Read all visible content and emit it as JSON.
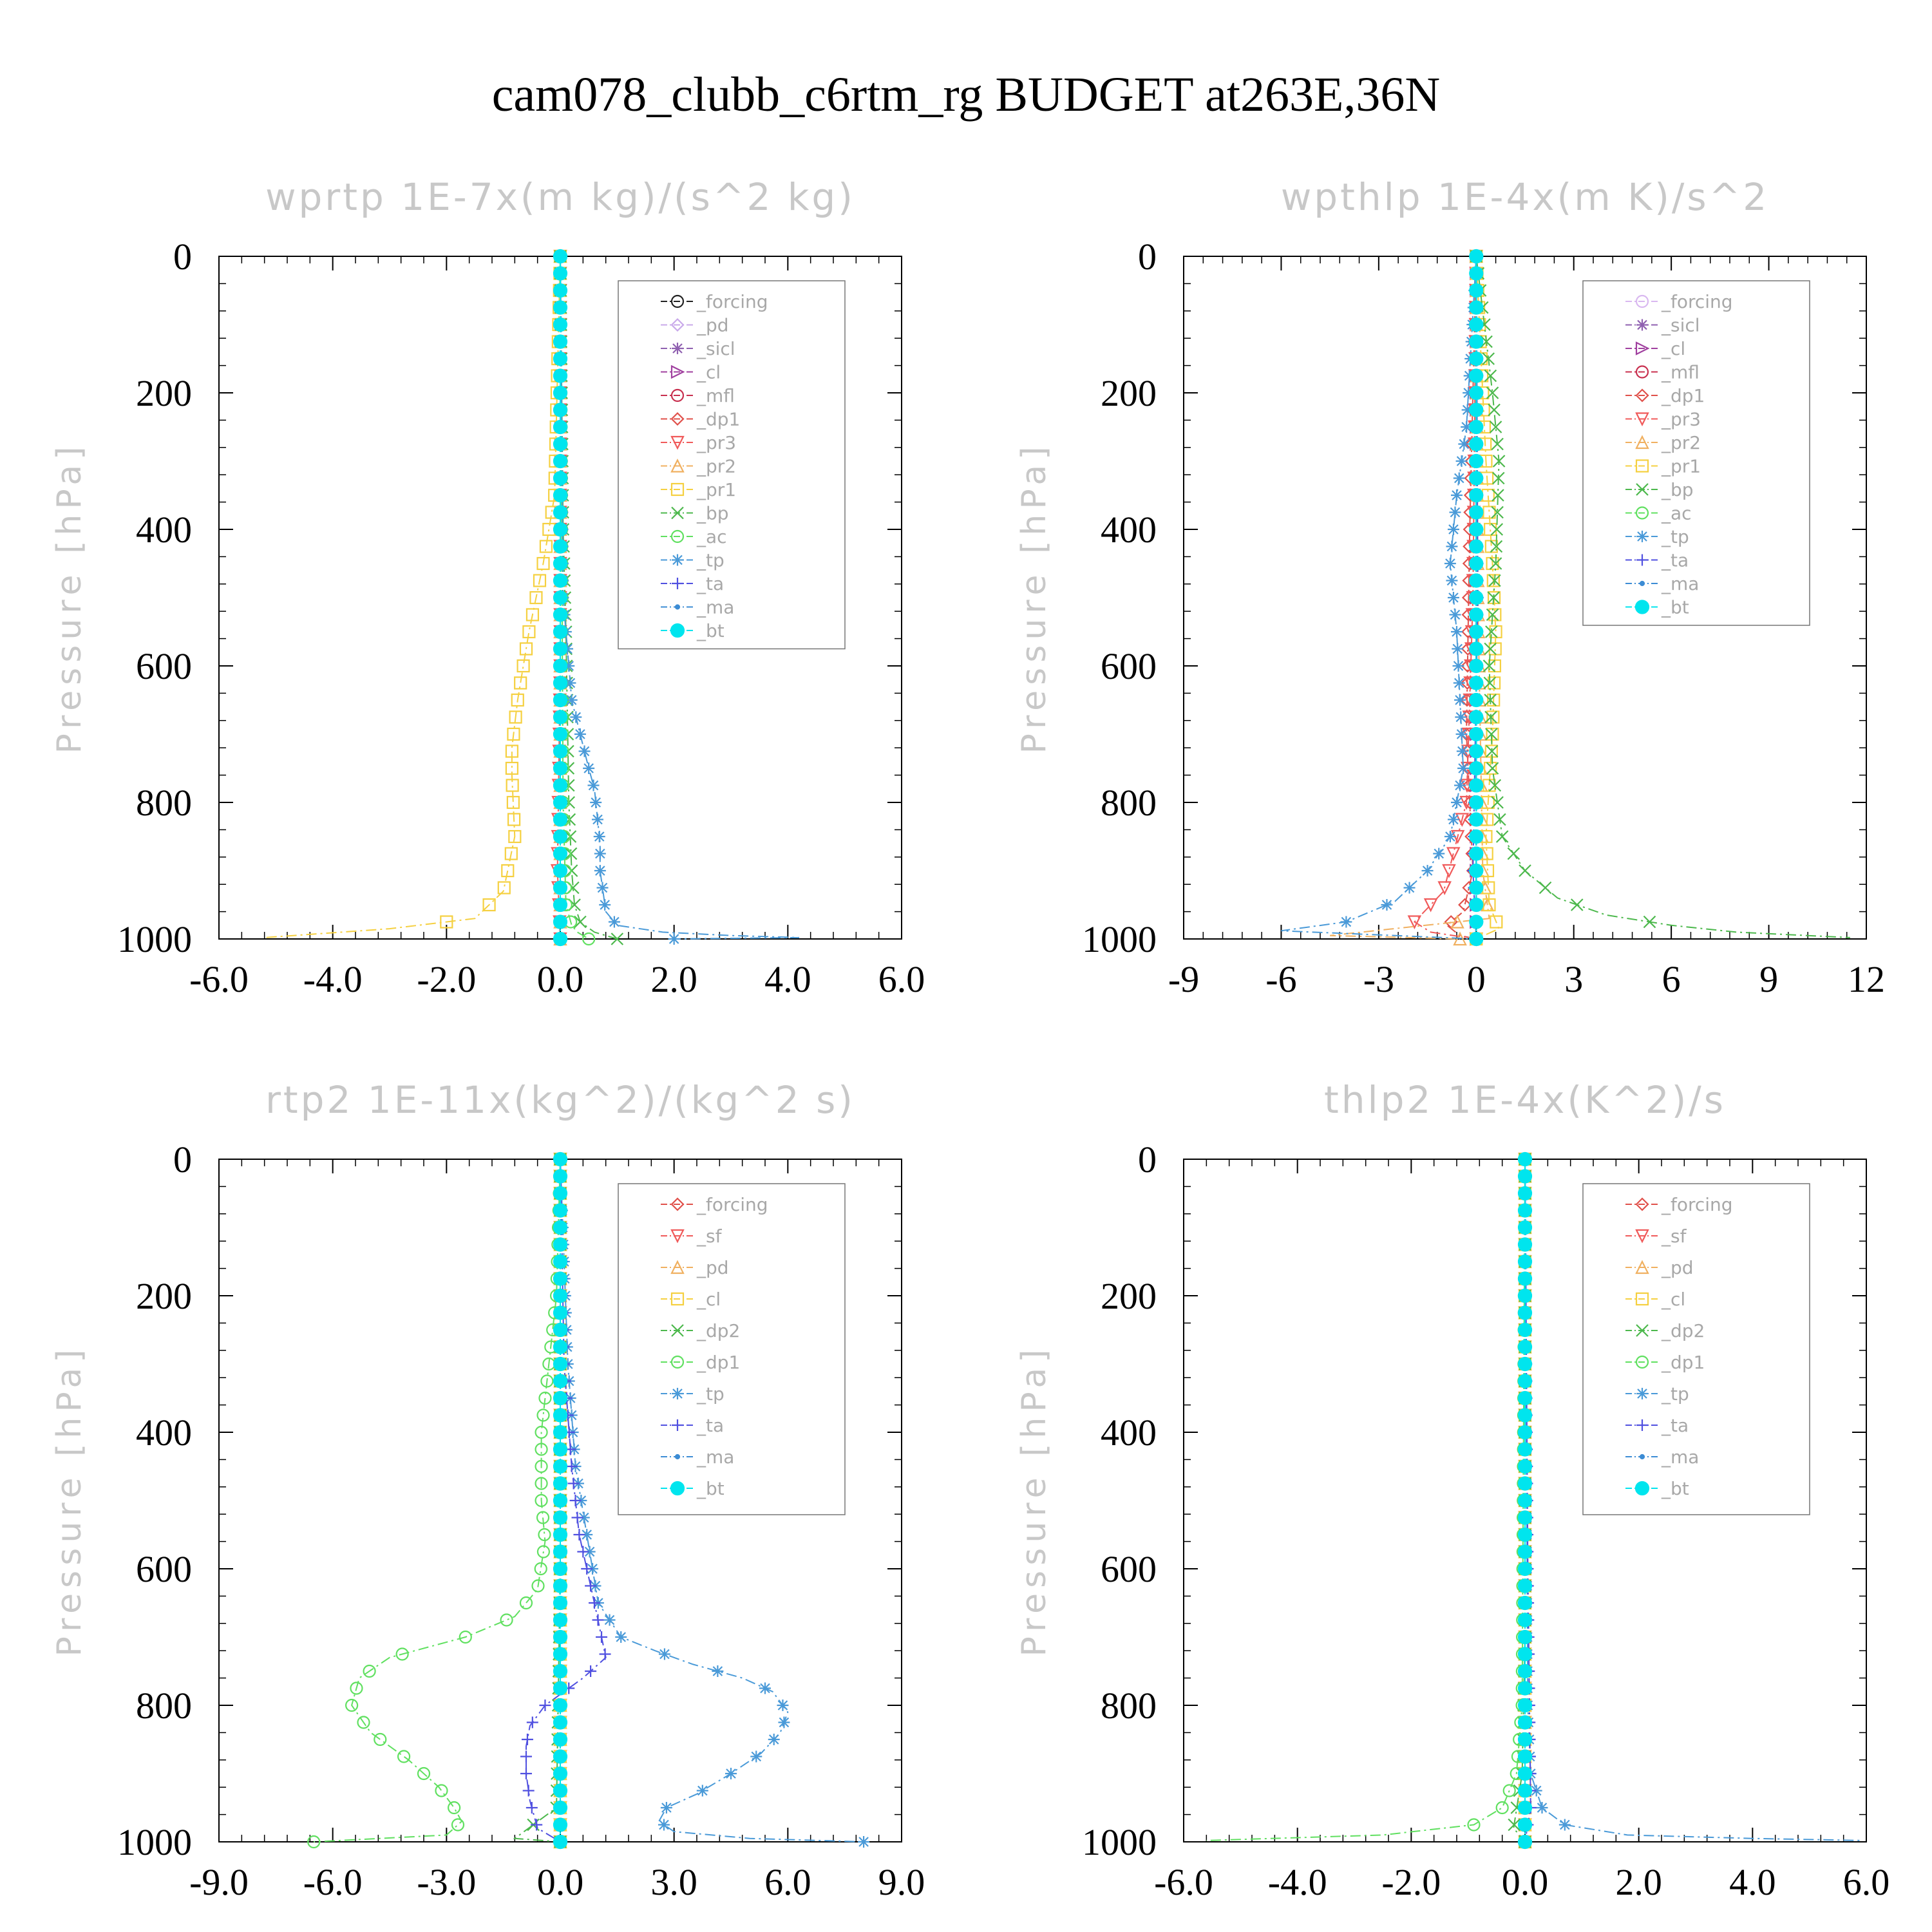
{
  "title": "cam078_clubb_c6rtm_rg  BUDGET at263E,36N",
  "chart_data": [
    {
      "type": "line",
      "title": "wprtp  1E-7x(m kg)/(s^2 kg)",
      "ylabel": "Pressure [hPa]",
      "xlim": [
        -6,
        6
      ],
      "ylim": [
        0,
        1000
      ],
      "y_inverted": true,
      "xticks": [
        "-6.0",
        "-4.0",
        "-2.0",
        "0.0",
        "2.0",
        "4.0",
        "6.0"
      ],
      "yticks": [
        "0",
        "200",
        "400",
        "600",
        "800",
        "1000"
      ],
      "legend_position": "top-right",
      "series": [
        {
          "name": "_forcing",
          "color": "#222222",
          "marker": "circle-dot",
          "x": [
            0
          ],
          "y": [
            0
          ]
        },
        {
          "name": "_pd",
          "color": "#c9a9ea",
          "marker": "diamond",
          "x": [
            0
          ],
          "y": [
            0
          ]
        },
        {
          "name": "_sicl",
          "color": "#8f60b0",
          "marker": "star",
          "x": [
            0
          ],
          "y": [
            0
          ]
        },
        {
          "name": "_cl",
          "color": "#a0409f",
          "marker": "triangle-right",
          "x": [
            0
          ],
          "y": [
            0
          ]
        },
        {
          "name": "_mfl",
          "color": "#c8304f",
          "marker": "circle-cross",
          "x": [
            0
          ],
          "y": [
            0
          ]
        },
        {
          "name": "_dp1",
          "color": "#e0504a",
          "marker": "diamond",
          "x": [
            0
          ],
          "y": [
            0
          ]
        },
        {
          "name": "_pr3",
          "color": "#f05a5a",
          "marker": "triangle-down",
          "x": [
            0,
            0,
            0,
            -0.05,
            0
          ],
          "y": [
            0,
            400,
            600,
            900,
            1000
          ]
        },
        {
          "name": "_pr2",
          "color": "#f0b060",
          "marker": "triangle-up",
          "x": [
            0,
            0,
            0
          ],
          "y": [
            0,
            600,
            1000
          ]
        },
        {
          "name": "_pr1",
          "color": "#f5d040",
          "marker": "square",
          "x": [
            0,
            -0.1,
            -0.3,
            -0.55,
            -0.75,
            -0.85,
            -0.85,
            -0.8,
            -1.0,
            -1.5,
            -3.0,
            -5.2
          ],
          "y": [
            0,
            350,
            450,
            550,
            650,
            720,
            760,
            850,
            930,
            970,
            985,
            998
          ]
        },
        {
          "name": "_bp",
          "color": "#4cb84c",
          "marker": "x",
          "x": [
            0,
            0.05,
            0.1,
            0.12,
            0.15,
            0.2,
            0.25,
            0.35,
            0.6,
            1.0
          ],
          "y": [
            0,
            400,
            550,
            650,
            800,
            900,
            950,
            975,
            990,
            1000
          ]
        },
        {
          "name": "_ac",
          "color": "#60e060",
          "marker": "circle",
          "x": [
            0,
            0.05,
            0.1,
            0.2,
            0.3,
            0.5
          ],
          "y": [
            0,
            800,
            950,
            980,
            990,
            1000
          ]
        },
        {
          "name": "_tp",
          "color": "#4a9ad8",
          "marker": "asterisk",
          "x": [
            0,
            0.05,
            0.2,
            0.35,
            0.5,
            0.6,
            0.65,
            0.7,
            0.7,
            0.75,
            0.8,
            1.0,
            1.8,
            3.0,
            4.2,
            2.0
          ],
          "y": [
            0,
            500,
            650,
            700,
            750,
            780,
            820,
            860,
            900,
            930,
            960,
            980,
            990,
            995,
            998,
            1000
          ]
        },
        {
          "name": "_ta",
          "color": "#5050e0",
          "marker": "plus",
          "x": [
            0,
            0,
            0
          ],
          "y": [
            0,
            500,
            1000
          ]
        },
        {
          "name": "_ma",
          "color": "#3c8cd4",
          "marker": "dot",
          "x": [
            0,
            0
          ],
          "y": [
            0,
            1000
          ]
        },
        {
          "name": "_bt",
          "color": "#00e5ee",
          "marker": "filled-circle",
          "x": [
            0,
            0
          ],
          "y": [
            0,
            1000
          ]
        }
      ]
    },
    {
      "type": "line",
      "title": "wpthlp  1E-4x(m K)/s^2",
      "ylabel": "Pressure [hPa]",
      "xlim": [
        -9,
        12
      ],
      "ylim": [
        0,
        1000
      ],
      "y_inverted": true,
      "xticks": [
        "-9",
        "-6",
        "-3",
        "0",
        "3",
        "6",
        "9",
        "12"
      ],
      "yticks": [
        "0",
        "200",
        "400",
        "600",
        "800",
        "1000"
      ],
      "legend_position": "top-right",
      "series": [
        {
          "name": "_forcing",
          "color": "#d9b8f0",
          "marker": "circle-dot",
          "x": [
            0,
            0
          ],
          "y": [
            0,
            1000
          ]
        },
        {
          "name": "_sicl",
          "color": "#8f60b0",
          "marker": "star",
          "x": [
            0,
            0
          ],
          "y": [
            0,
            1000
          ]
        },
        {
          "name": "_cl",
          "color": "#a0409f",
          "marker": "triangle-right",
          "x": [
            0,
            0
          ],
          "y": [
            0,
            1000
          ]
        },
        {
          "name": "_mfl",
          "color": "#c8304f",
          "marker": "circle-cross",
          "x": [
            0,
            0
          ],
          "y": [
            0,
            1000
          ]
        },
        {
          "name": "_dp1",
          "color": "#e0504a",
          "marker": "diamond",
          "x": [
            0,
            -0.1,
            -0.2,
            -0.3,
            -0.1,
            -0.4,
            -0.9,
            -0.5,
            0
          ],
          "y": [
            0,
            200,
            400,
            700,
            900,
            960,
            980,
            995,
            1000
          ]
        },
        {
          "name": "_pr3",
          "color": "#f05a5a",
          "marker": "triangle-down",
          "x": [
            0,
            -0.1,
            -0.3,
            -1.0,
            -1.9,
            -1.4,
            0
          ],
          "y": [
            0,
            500,
            800,
            930,
            975,
            990,
            1000
          ]
        },
        {
          "name": "_pr2",
          "color": "#f0b060",
          "marker": "triangle-up",
          "x": [
            0,
            0.05,
            0.2,
            0.4,
            -4.5,
            -0.5
          ],
          "y": [
            0,
            500,
            900,
            970,
            995,
            1000
          ]
        },
        {
          "name": "_pr1",
          "color": "#f5d040",
          "marker": "square",
          "x": [
            0,
            0.3,
            0.5,
            0.6,
            0.5,
            0.3,
            0.4,
            0.7,
            0
          ],
          "y": [
            0,
            300,
            450,
            550,
            700,
            850,
            950,
            985,
            1000
          ]
        },
        {
          "name": "_bp",
          "color": "#4cb84c",
          "marker": "x",
          "x": [
            0,
            0.5,
            0.7,
            0.6,
            0.4,
            0.5,
            0.8,
            1.5,
            2.5,
            4.0,
            6.0,
            8.0,
            11.5
          ],
          "y": [
            0,
            200,
            300,
            450,
            600,
            750,
            850,
            900,
            940,
            965,
            980,
            990,
            998
          ]
        },
        {
          "name": "_ac",
          "color": "#60e060",
          "marker": "circle",
          "x": [
            0,
            0,
            0
          ],
          "y": [
            0,
            500,
            1000
          ]
        },
        {
          "name": "_tp",
          "color": "#4a9ad8",
          "marker": "asterisk",
          "x": [
            0,
            -0.3,
            -0.6,
            -0.8,
            -0.6,
            -0.4,
            -0.8,
            -1.5,
            -2.5,
            -4.0,
            -6.0,
            0
          ],
          "y": [
            0,
            250,
            350,
            450,
            550,
            750,
            850,
            900,
            945,
            975,
            988,
            1000
          ]
        },
        {
          "name": "_ta",
          "color": "#5050e0",
          "marker": "plus",
          "x": [
            0,
            0.05,
            -0.1,
            0
          ],
          "y": [
            0,
            500,
            900,
            1000
          ]
        },
        {
          "name": "_ma",
          "color": "#3c8cd4",
          "marker": "dot",
          "x": [
            0,
            0
          ],
          "y": [
            0,
            1000
          ]
        },
        {
          "name": "_bt",
          "color": "#00e5ee",
          "marker": "filled-circle",
          "x": [
            0,
            0
          ],
          "y": [
            0,
            1000
          ]
        }
      ]
    },
    {
      "type": "line",
      "title": "rtp2  1E-11x(kg^2)/(kg^2 s)",
      "ylabel": "Pressure [hPa]",
      "xlim": [
        -9,
        9
      ],
      "ylim": [
        0,
        1000
      ],
      "y_inverted": true,
      "xticks": [
        "-9.0",
        "-6.0",
        "-3.0",
        "0.0",
        "3.0",
        "6.0",
        "9.0"
      ],
      "yticks": [
        "0",
        "200",
        "400",
        "600",
        "800",
        "1000"
      ],
      "legend_position": "top-right",
      "series": [
        {
          "name": "_forcing",
          "color": "#e0504a",
          "marker": "diamond",
          "x": [
            0,
            0
          ],
          "y": [
            0,
            1000
          ]
        },
        {
          "name": "_sf",
          "color": "#f05a5a",
          "marker": "triangle-down",
          "x": [
            0,
            0
          ],
          "y": [
            0,
            1000
          ]
        },
        {
          "name": "_pd",
          "color": "#f0b060",
          "marker": "triangle-up",
          "x": [
            0,
            0
          ],
          "y": [
            0,
            1000
          ]
        },
        {
          "name": "_cl",
          "color": "#f5d040",
          "marker": "square",
          "x": [
            0,
            0
          ],
          "y": [
            0,
            1000
          ]
        },
        {
          "name": "_dp2",
          "color": "#4cb84c",
          "marker": "x",
          "x": [
            0,
            0,
            -0.1,
            -1.2,
            0
          ],
          "y": [
            0,
            600,
            950,
            995,
            1000
          ]
        },
        {
          "name": "_dp1",
          "color": "#60e060",
          "marker": "circle",
          "x": [
            0,
            -0.1,
            -0.3,
            -0.5,
            -0.5,
            -0.4,
            -0.6,
            -1.2,
            -2.5,
            -4.5,
            -5.3,
            -5.5,
            -5.0,
            -4.0,
            -3.2,
            -2.8,
            -2.6,
            -3.0,
            -6.5
          ],
          "y": [
            0,
            200,
            300,
            400,
            500,
            560,
            630,
            670,
            700,
            730,
            760,
            800,
            840,
            880,
            920,
            950,
            970,
            990,
            1000
          ]
        },
        {
          "name": "_tp",
          "color": "#4a9ad8",
          "marker": "asterisk",
          "x": [
            0,
            0.2,
            0.4,
            0.7,
            1.0,
            1.6,
            2.5,
            3.5,
            4.8,
            5.6,
            6.0,
            5.8,
            5.3,
            4.5,
            3.6,
            2.8,
            2.6,
            3.0,
            5.0,
            8.0
          ],
          "y": [
            0,
            300,
            450,
            550,
            650,
            700,
            720,
            740,
            760,
            780,
            810,
            840,
            870,
            900,
            930,
            950,
            970,
            985,
            995,
            1000
          ]
        },
        {
          "name": "_ta",
          "color": "#5050e0",
          "marker": "plus",
          "x": [
            0,
            0.1,
            0.3,
            0.5,
            0.9,
            1.2,
            0.6,
            0.1,
            -0.4,
            -0.8,
            -0.9,
            -0.9,
            -0.8,
            -0.6,
            0
          ],
          "y": [
            0,
            300,
            450,
            550,
            650,
            730,
            760,
            780,
            800,
            830,
            860,
            900,
            940,
            980,
            1000
          ]
        },
        {
          "name": "_ma",
          "color": "#3c8cd4",
          "marker": "dot",
          "x": [
            0,
            0
          ],
          "y": [
            0,
            1000
          ]
        },
        {
          "name": "_bt",
          "color": "#00e5ee",
          "marker": "filled-circle",
          "x": [
            0,
            0
          ],
          "y": [
            0,
            1000
          ]
        }
      ]
    },
    {
      "type": "line",
      "title": "thlp2  1E-4x(K^2)/s",
      "ylabel": "Pressure [hPa]",
      "xlim": [
        -6,
        6
      ],
      "ylim": [
        0,
        1000
      ],
      "y_inverted": true,
      "xticks": [
        "-6.0",
        "-4.0",
        "-2.0",
        "0.0",
        "2.0",
        "4.0",
        "6.0"
      ],
      "yticks": [
        "0",
        "200",
        "400",
        "600",
        "800",
        "1000"
      ],
      "legend_position": "top-right",
      "series": [
        {
          "name": "_forcing",
          "color": "#e0504a",
          "marker": "diamond",
          "x": [
            0,
            0
          ],
          "y": [
            0,
            1000
          ]
        },
        {
          "name": "_sf",
          "color": "#f05a5a",
          "marker": "triangle-down",
          "x": [
            0,
            0
          ],
          "y": [
            0,
            1000
          ]
        },
        {
          "name": "_pd",
          "color": "#f0b060",
          "marker": "triangle-up",
          "x": [
            0,
            0
          ],
          "y": [
            0,
            1000
          ]
        },
        {
          "name": "_cl",
          "color": "#f5d040",
          "marker": "square",
          "x": [
            0,
            0
          ],
          "y": [
            0,
            1000
          ]
        },
        {
          "name": "_dp2",
          "color": "#4cb84c",
          "marker": "x",
          "x": [
            0,
            0,
            -0.05,
            -0.2,
            0
          ],
          "y": [
            0,
            700,
            900,
            980,
            1000
          ]
        },
        {
          "name": "_dp1",
          "color": "#60e060",
          "marker": "circle",
          "x": [
            0,
            -0.05,
            -0.15,
            -0.4,
            -0.9,
            -2.5,
            -5.6
          ],
          "y": [
            0,
            800,
            900,
            950,
            975,
            990,
            998
          ]
        },
        {
          "name": "_tp",
          "color": "#4a9ad8",
          "marker": "asterisk",
          "x": [
            0,
            0.05,
            0.1,
            0.3,
            0.7,
            1.8,
            4.0,
            5.9
          ],
          "y": [
            0,
            800,
            900,
            950,
            975,
            990,
            995,
            998
          ]
        },
        {
          "name": "_ta",
          "color": "#5050e0",
          "marker": "plus",
          "x": [
            0,
            0.05,
            0.1,
            0
          ],
          "y": [
            0,
            600,
            950,
            1000
          ]
        },
        {
          "name": "_ma",
          "color": "#3c8cd4",
          "marker": "dot",
          "x": [
            0,
            0
          ],
          "y": [
            0,
            1000
          ]
        },
        {
          "name": "_bt",
          "color": "#00e5ee",
          "marker": "filled-circle",
          "x": [
            0,
            0
          ],
          "y": [
            0,
            1000
          ]
        }
      ]
    }
  ]
}
